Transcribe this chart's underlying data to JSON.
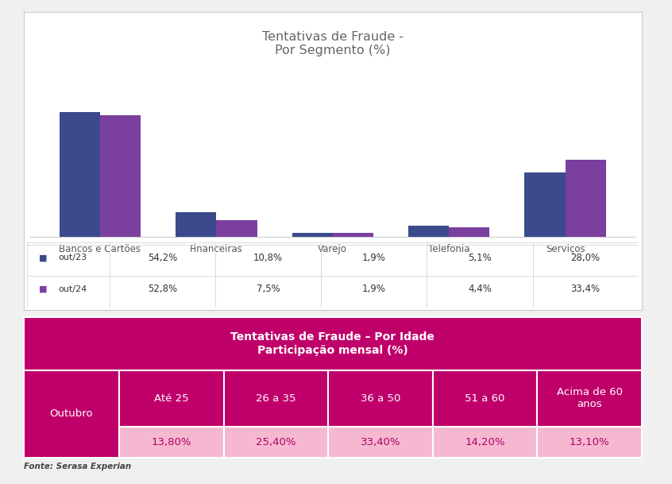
{
  "chart_title": "Tentativas de Fraude -\nPor Segmento (%)",
  "categories": [
    "Bancos e Cartões",
    "Financeiras",
    "Varejo",
    "Telefonia",
    "Serviços"
  ],
  "out23_values": [
    54.2,
    10.8,
    1.9,
    5.1,
    28.0
  ],
  "out24_values": [
    52.8,
    7.5,
    1.9,
    4.4,
    33.4
  ],
  "out23_label": "out/23",
  "out24_label": "out/24",
  "out23_color": "#3b4a8c",
  "out24_color": "#7b3fa0",
  "out23_display": [
    "54,2%",
    "10,8%",
    "1,9%",
    "5,1%",
    "28,0%"
  ],
  "out24_display": [
    "52,8%",
    "7,5%",
    "1,9%",
    "4,4%",
    "33,4%"
  ],
  "fonte_text": "Fonte: Serasa Experian",
  "chart_bg": "#ffffff",
  "chart_border": "#cccccc",
  "bg_color": "#f0f0f0",
  "table_title_line1": "Tentativas de Fraude – Por Idade",
  "table_title_line2": "Participação mensal (%)",
  "table_header_bg": "#c0006a",
  "table_header_text": "#ffffff",
  "table_data_bg": "#f5b8d0",
  "table_data_text": "#b0006a",
  "table_outubro_bg": "#c0006a",
  "table_outubro_text": "#ffffff",
  "age_headers": [
    "Até 25",
    "26 a 35",
    "36 a 50",
    "51 a 60",
    "Acima de 60\nanos"
  ],
  "age_values": [
    "13,80%",
    "25,40%",
    "33,40%",
    "14,20%",
    "13,10%"
  ],
  "outubro_label": "Outubro"
}
